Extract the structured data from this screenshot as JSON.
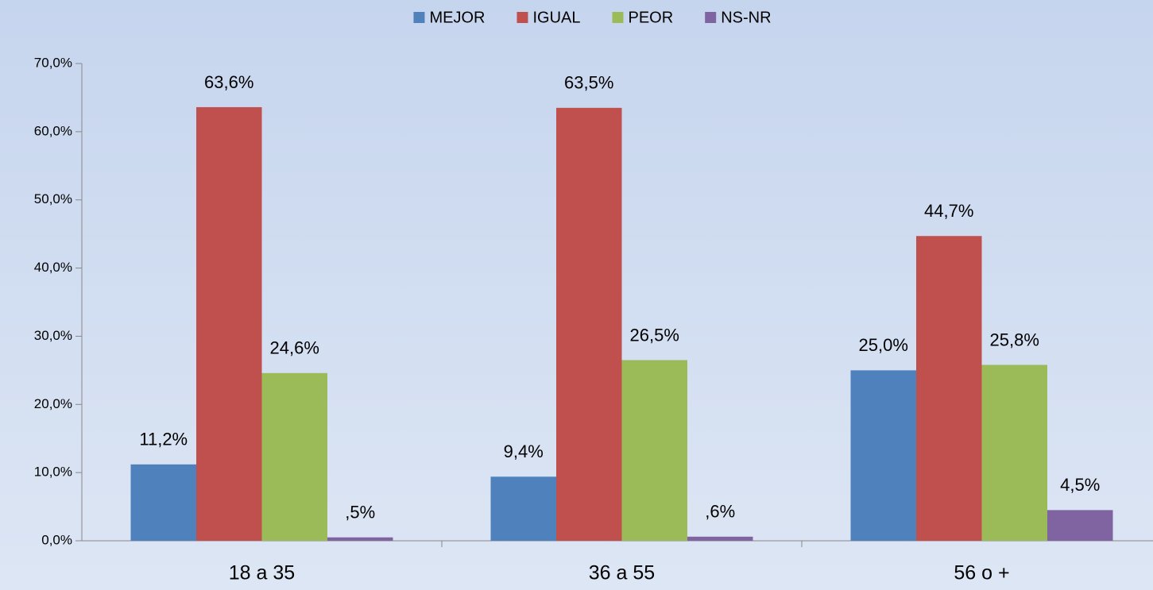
{
  "chart_data": {
    "type": "bar",
    "categories": [
      "18 a 35",
      "36 a 55",
      "56 o +"
    ],
    "series": [
      {
        "name": "MEJOR",
        "color": "#4f81bd",
        "values": [
          11.2,
          9.4,
          25.0
        ],
        "value_labels": [
          "11,2%",
          "9,4%",
          "25,0%"
        ]
      },
      {
        "name": "IGUAL",
        "color": "#c0504d",
        "values": [
          63.6,
          63.5,
          44.7
        ],
        "value_labels": [
          "63,6%",
          "63,5%",
          "44,7%"
        ]
      },
      {
        "name": "PEOR",
        "color": "#9bbb59",
        "values": [
          24.6,
          26.5,
          25.8
        ],
        "value_labels": [
          "24,6%",
          "26,5%",
          "25,8%"
        ]
      },
      {
        "name": "NS-NR",
        "color": "#8064a2",
        "values": [
          0.5,
          0.6,
          4.5
        ],
        "value_labels": [
          ",5%",
          ",6%",
          "4,5%"
        ]
      }
    ],
    "ylim": [
      0,
      70
    ],
    "yticks": [
      {
        "value": 0,
        "label": "0,0%"
      },
      {
        "value": 10,
        "label": "10,0%"
      },
      {
        "value": 20,
        "label": "20,0%"
      },
      {
        "value": 30,
        "label": "30,0%"
      },
      {
        "value": 40,
        "label": "40,0%"
      },
      {
        "value": 50,
        "label": "50,0%"
      },
      {
        "value": 60,
        "label": "60,0%"
      },
      {
        "value": 70,
        "label": "70,0%"
      }
    ],
    "legend": "top"
  }
}
